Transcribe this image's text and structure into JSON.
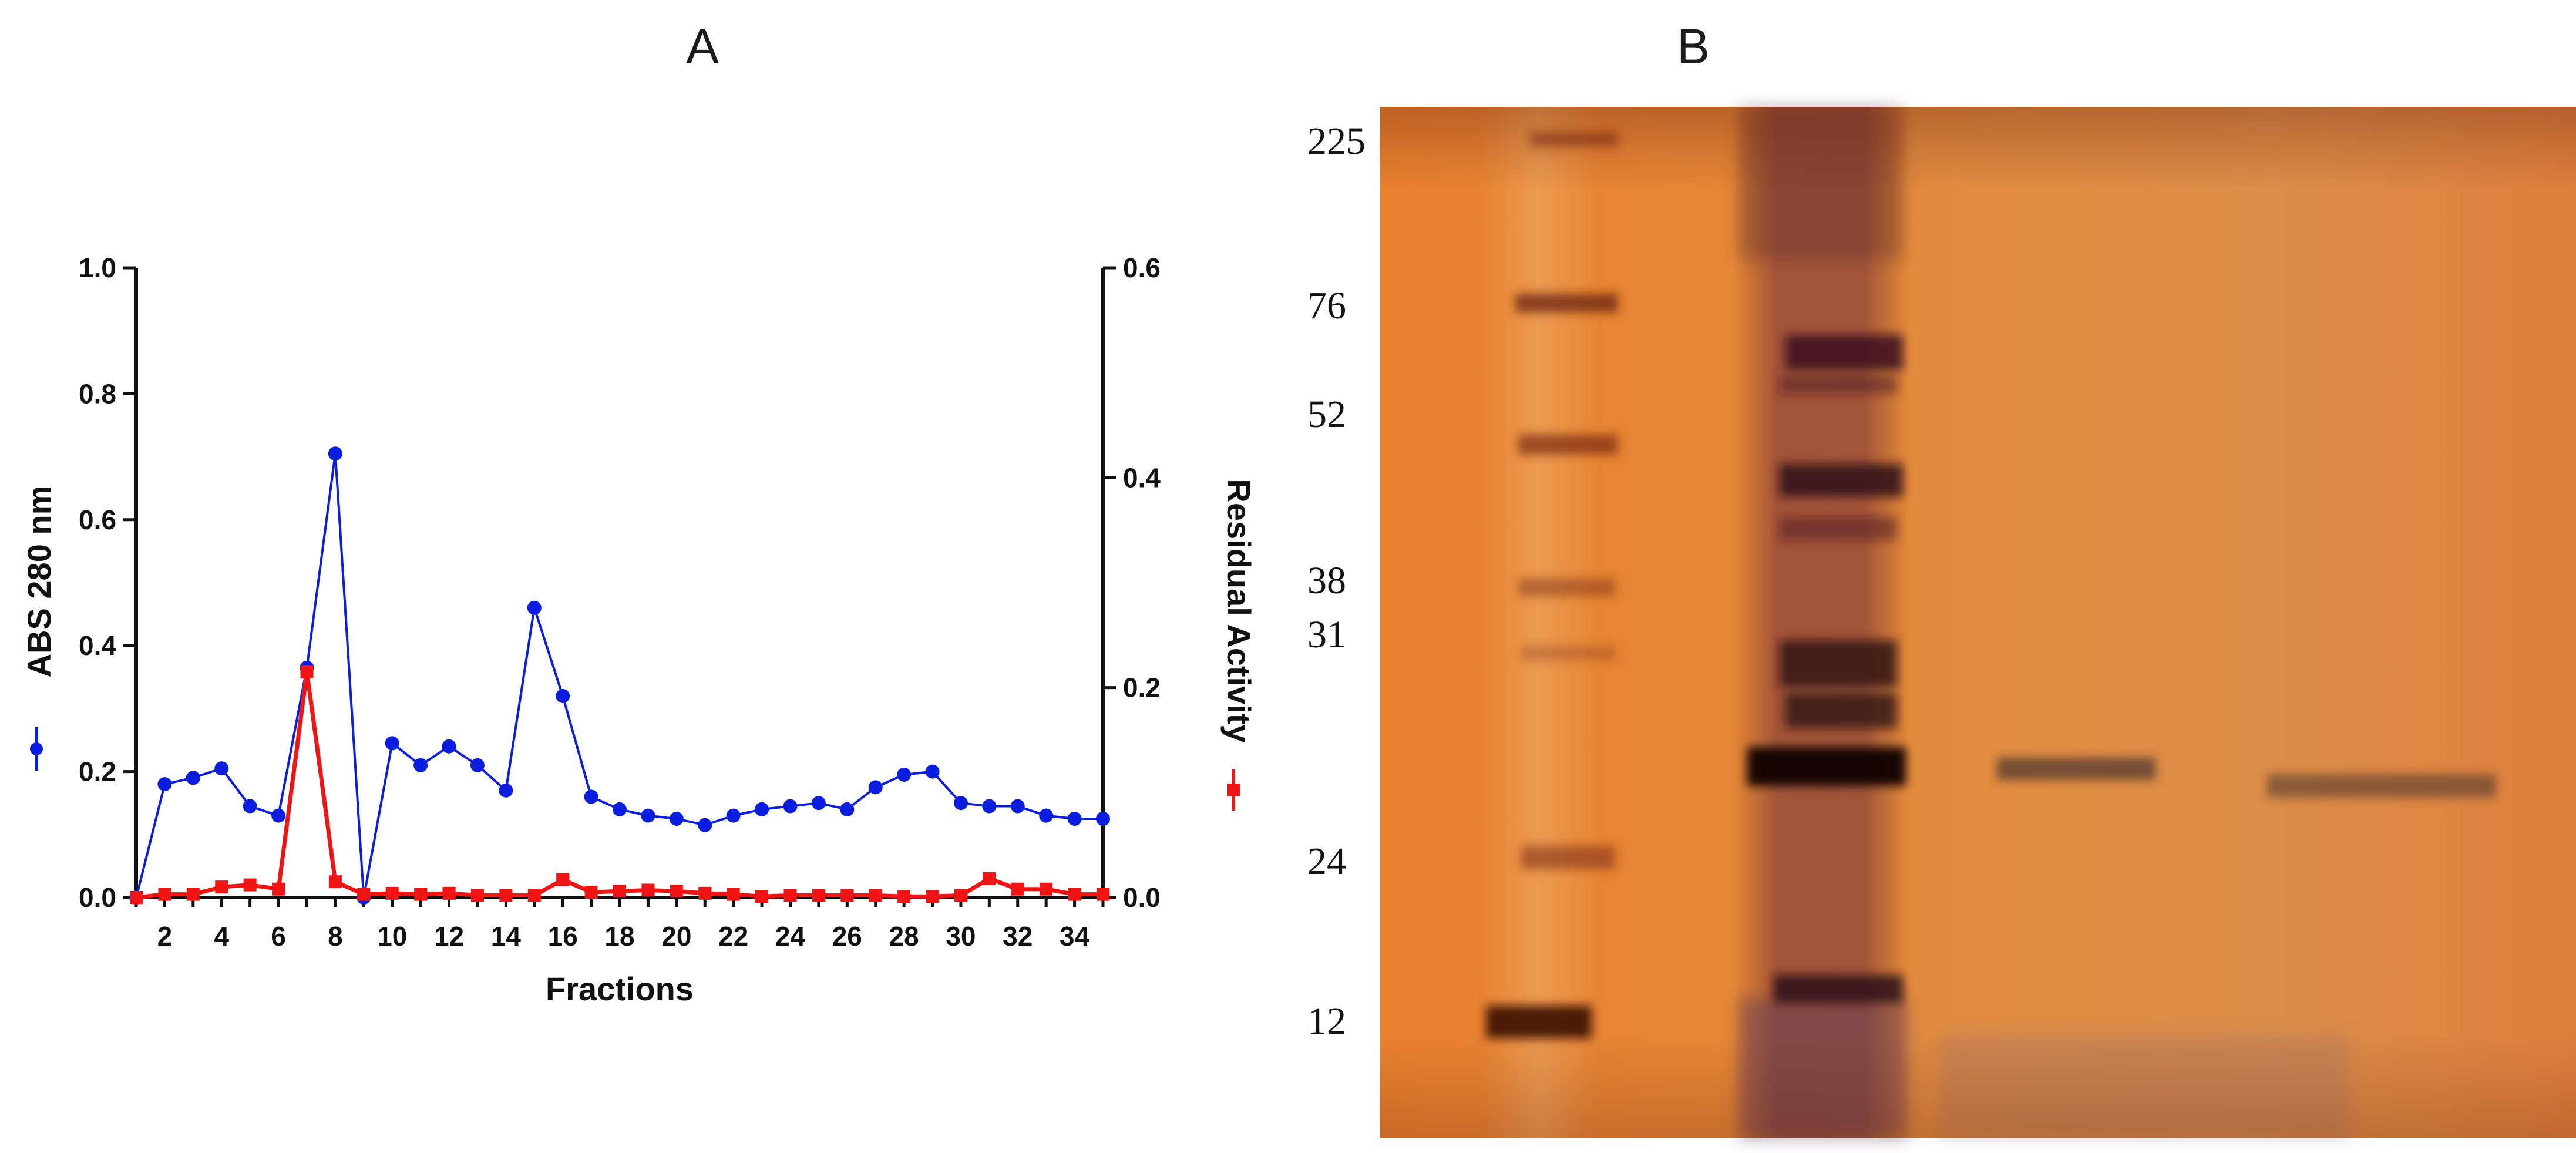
{
  "panels": {
    "a_label": "A",
    "b_label": "B"
  },
  "chart_data": {
    "type": "line",
    "xlabel": "Fractions",
    "y_left_label": "ABS 280 nm",
    "y_right_label": "Residual Activity",
    "x": [
      1,
      2,
      3,
      4,
      5,
      6,
      7,
      8,
      9,
      10,
      11,
      12,
      13,
      14,
      15,
      16,
      17,
      18,
      19,
      20,
      21,
      22,
      23,
      24,
      25,
      26,
      27,
      28,
      29,
      30,
      31,
      32,
      33,
      34,
      35
    ],
    "x_ticks": [
      "2",
      "4",
      "6",
      "8",
      "10",
      "12",
      "14",
      "16",
      "18",
      "20",
      "22",
      "24",
      "26",
      "28",
      "30",
      "32",
      "34"
    ],
    "y_left_lim": [
      0,
      1.0
    ],
    "y_left_ticks": [
      "0.0",
      "0.2",
      "0.4",
      "0.6",
      "0.8",
      "1.0"
    ],
    "y_right_lim": [
      0,
      0.6
    ],
    "y_right_ticks": [
      "0.0",
      "0.2",
      "0.4",
      "0.6"
    ],
    "series": [
      {
        "axis": "left",
        "color": "#0b1ee0",
        "marker": "circle",
        "values": [
          0.0,
          0.18,
          0.19,
          0.205,
          0.145,
          0.13,
          0.365,
          0.705,
          0.0,
          0.245,
          0.21,
          0.24,
          0.21,
          0.17,
          0.46,
          0.32,
          0.16,
          0.14,
          0.13,
          0.125,
          0.115,
          0.13,
          0.14,
          0.145,
          0.15,
          0.14,
          0.175,
          0.195,
          0.2,
          0.15,
          0.145,
          0.145,
          0.13,
          0.125,
          0.125
        ]
      },
      {
        "axis": "right",
        "color": "#f01414",
        "marker": "square",
        "values": [
          0.0,
          0.003,
          0.003,
          0.01,
          0.012,
          0.008,
          0.215,
          0.015,
          0.003,
          0.004,
          0.003,
          0.004,
          0.002,
          0.002,
          0.002,
          0.017,
          0.005,
          0.006,
          0.007,
          0.006,
          0.004,
          0.003,
          0.001,
          0.002,
          0.002,
          0.002,
          0.002,
          0.001,
          0.001,
          0.002,
          0.018,
          0.008,
          0.008,
          0.003,
          0.003
        ]
      }
    ],
    "gel_markers": [
      "225",
      "76",
      "52",
      "38",
      "31",
      "24",
      "12"
    ],
    "gel_background": "#e27d2d"
  }
}
